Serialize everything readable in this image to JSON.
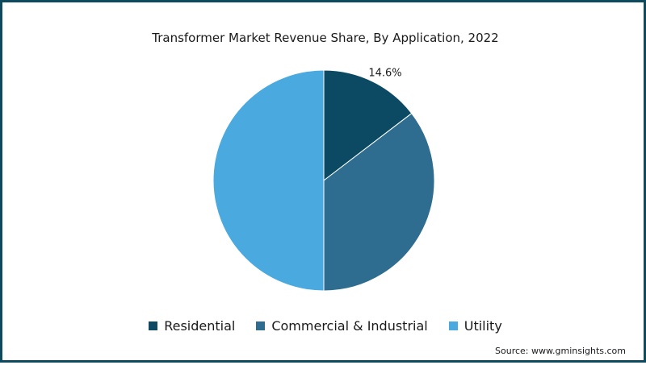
{
  "chart_data": {
    "type": "pie",
    "title": "Transformer Market Revenue Share, By Application, 2022",
    "categories": [
      "Residential",
      "Commercial & Industrial",
      "Utility"
    ],
    "values": [
      14.6,
      35.4,
      50.0
    ],
    "colors": [
      "#0b4a62",
      "#2e6d8f",
      "#4aa9df"
    ],
    "data_labels": [
      "14.6%",
      "",
      ""
    ],
    "legend_position": "bottom"
  },
  "source": "Source: www.gminsights.com",
  "colors": {
    "border": "#0d4a5e",
    "background": "#ffffff"
  }
}
